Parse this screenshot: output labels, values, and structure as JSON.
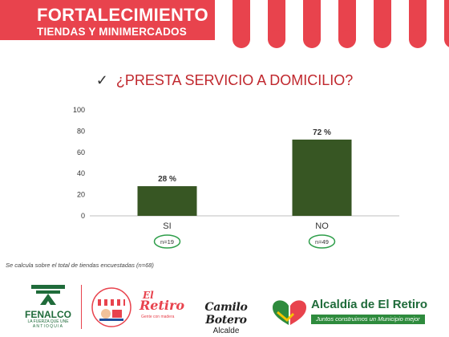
{
  "header": {
    "title_line1": "FORTALECIMIENTO",
    "title_line2": "TIENDAS Y MINIMERCADOS",
    "colors": {
      "banner": "#e8434d",
      "stripe": "#ffffff"
    }
  },
  "question": {
    "icon": "checkmark-icon",
    "text": "¿PRESTA SERVICIO A DOMICILIO?"
  },
  "chart_data": {
    "type": "bar",
    "title": "",
    "categories": [
      "SI",
      "NO"
    ],
    "values": [
      28,
      72
    ],
    "data_labels": [
      "28 %",
      "72 %"
    ],
    "n_labels": [
      "n=19",
      "n=49"
    ],
    "ylim": [
      0,
      100
    ],
    "yticks": [
      0,
      20,
      40,
      60,
      80,
      100
    ],
    "grid": false,
    "legend": "none",
    "bar_color": "#375623"
  },
  "footnote": "Se calcula sobre el total de tiendas encuestadas (n=68)",
  "footer": {
    "fenalco_name": "FENALCO",
    "fenalco_tagline": "LA FUERZA QUE UNE",
    "fenalco_region": "ANTIOQUIA",
    "fortalecimiento_logo_icon": "storefront-icon",
    "retiro_logo_top": "El",
    "retiro_logo_main": "Retiro",
    "retiro_logo_tag": "Gente con madera",
    "camilo_name": "Camilo Botero",
    "camilo_role": "Alcalde",
    "alcaldia_title": "Alcaldía de El Retiro",
    "alcaldia_slogan": "Juntos construimos un Municipio mejor",
    "colors": {
      "green": "#1f6b3a",
      "red": "#e8434d",
      "slogan_bg": "#2e8b3d"
    }
  }
}
